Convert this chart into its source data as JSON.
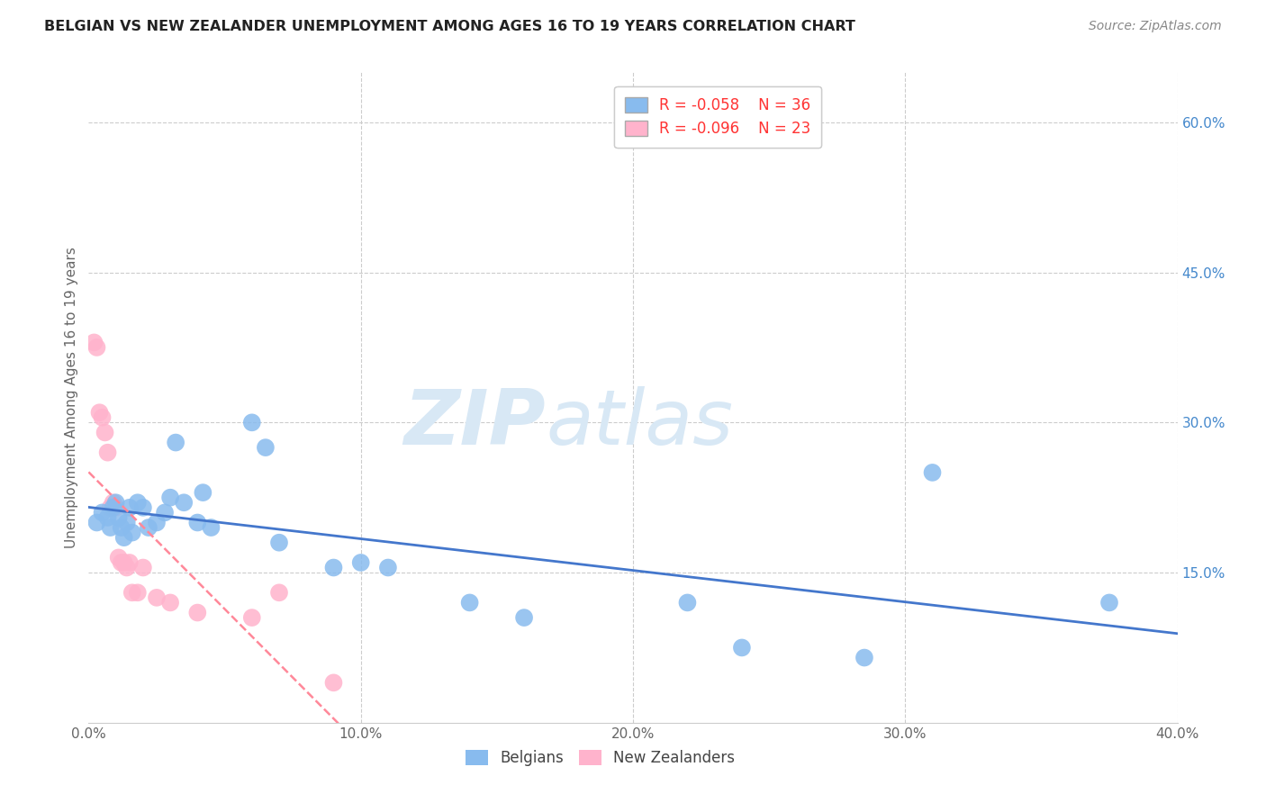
{
  "title": "BELGIAN VS NEW ZEALANDER UNEMPLOYMENT AMONG AGES 16 TO 19 YEARS CORRELATION CHART",
  "source": "Source: ZipAtlas.com",
  "ylabel": "Unemployment Among Ages 16 to 19 years",
  "xlim": [
    0.0,
    0.4
  ],
  "ylim": [
    0.0,
    0.65
  ],
  "xticks": [
    0.0,
    0.1,
    0.2,
    0.3,
    0.4
  ],
  "xticklabels": [
    "0.0%",
    "10.0%",
    "20.0%",
    "30.0%",
    "40.0%"
  ],
  "yticks_right": [
    0.15,
    0.3,
    0.45,
    0.6
  ],
  "yticklabels_right": [
    "15.0%",
    "30.0%",
    "45.0%",
    "60.0%"
  ],
  "belgian_color": "#88BBEE",
  "nz_color": "#FFB3CC",
  "belgian_line_color": "#4477CC",
  "nz_line_color": "#FF8899",
  "watermark_color": "#D8E8F5",
  "background_color": "#FFFFFF",
  "legend_R1": "R = -0.058",
  "legend_N1": "N = 36",
  "legend_R2": "R = -0.096",
  "legend_N2": "N = 23",
  "belgian_label": "Belgians",
  "nz_label": "New Zealanders",
  "belgian_x": [
    0.003,
    0.005,
    0.007,
    0.008,
    0.009,
    0.01,
    0.011,
    0.012,
    0.013,
    0.014,
    0.015,
    0.016,
    0.018,
    0.02,
    0.022,
    0.025,
    0.028,
    0.03,
    0.032,
    0.035,
    0.04,
    0.042,
    0.045,
    0.06,
    0.065,
    0.07,
    0.09,
    0.1,
    0.11,
    0.14,
    0.16,
    0.22,
    0.24,
    0.285,
    0.31,
    0.375
  ],
  "belgian_y": [
    0.2,
    0.21,
    0.205,
    0.195,
    0.215,
    0.22,
    0.205,
    0.195,
    0.185,
    0.2,
    0.215,
    0.19,
    0.22,
    0.215,
    0.195,
    0.2,
    0.21,
    0.225,
    0.28,
    0.22,
    0.2,
    0.23,
    0.195,
    0.3,
    0.275,
    0.18,
    0.155,
    0.16,
    0.155,
    0.12,
    0.105,
    0.12,
    0.075,
    0.065,
    0.25,
    0.12
  ],
  "nz_x": [
    0.002,
    0.003,
    0.004,
    0.005,
    0.006,
    0.007,
    0.008,
    0.009,
    0.01,
    0.011,
    0.012,
    0.013,
    0.014,
    0.015,
    0.016,
    0.018,
    0.02,
    0.025,
    0.03,
    0.04,
    0.06,
    0.07,
    0.09
  ],
  "nz_y": [
    0.38,
    0.375,
    0.31,
    0.305,
    0.29,
    0.27,
    0.215,
    0.22,
    0.215,
    0.165,
    0.16,
    0.16,
    0.155,
    0.16,
    0.13,
    0.13,
    0.155,
    0.125,
    0.12,
    0.11,
    0.105,
    0.13,
    0.04
  ],
  "title_fontsize": 11.5,
  "source_fontsize": 10,
  "label_fontsize": 11,
  "legend_fontsize": 12
}
